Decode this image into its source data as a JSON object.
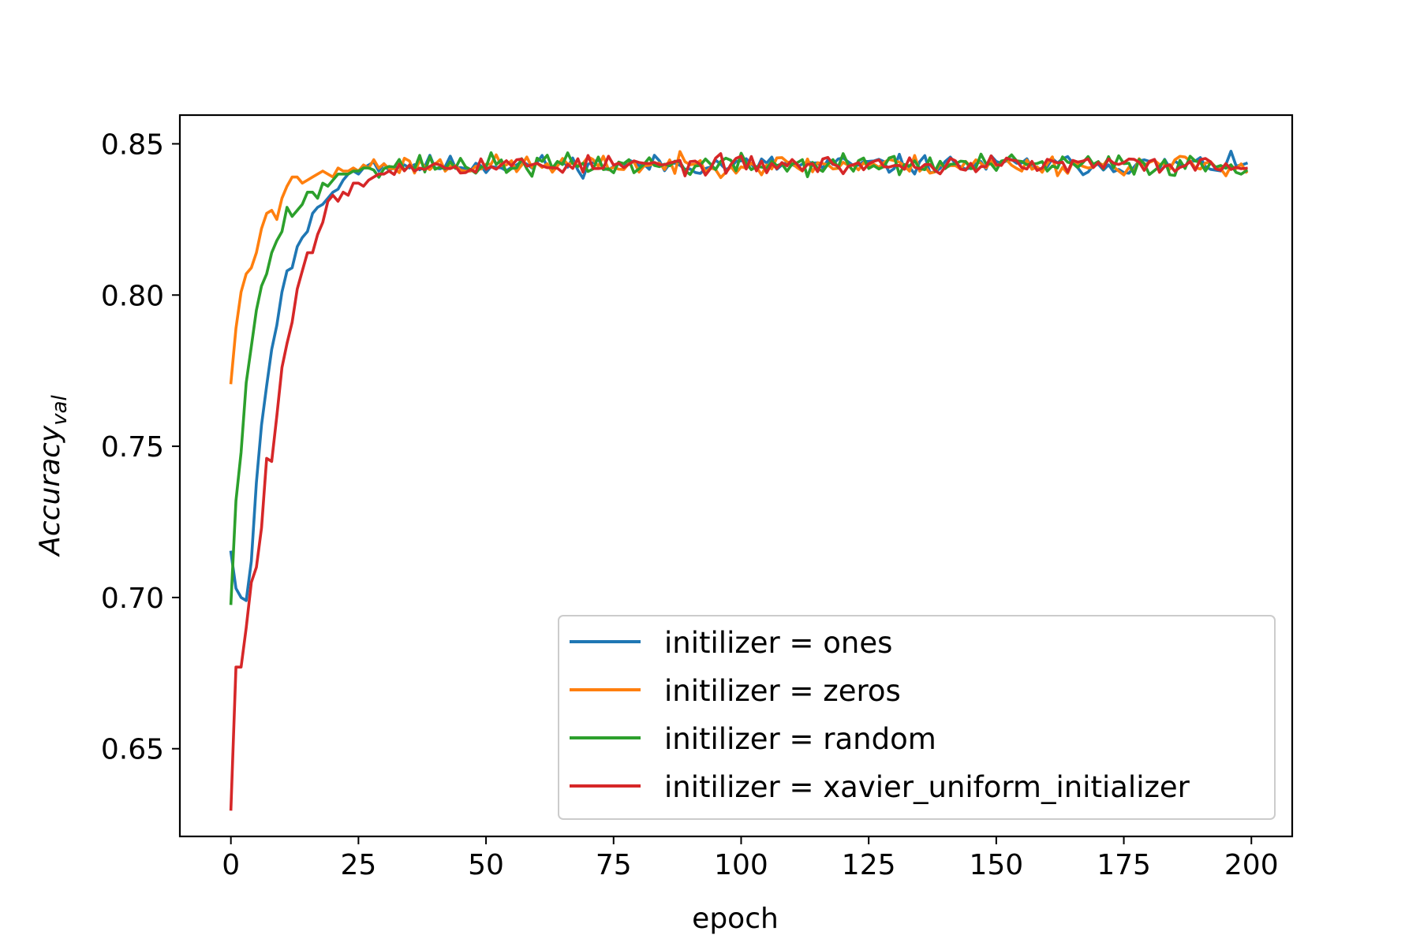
{
  "chart_data": {
    "type": "line",
    "xlabel": "epoch",
    "ylabel": "Accuracy",
    "ylabel_sub": "val",
    "xlim": [
      -10,
      208
    ],
    "ylim": [
      0.621,
      0.8595
    ],
    "xticks": [
      0,
      25,
      50,
      75,
      100,
      125,
      150,
      175,
      200
    ],
    "yticks": [
      0.65,
      0.7,
      0.75,
      0.8,
      0.85
    ],
    "ytick_labels": [
      "0.65",
      "0.70",
      "0.75",
      "0.80",
      "0.85"
    ],
    "grid": false,
    "legend_position": "lower-right",
    "plateau": 0.843,
    "series": [
      {
        "name": "initilizer = ones",
        "color": "#1f77b4",
        "early": [
          [
            0,
            0.715
          ],
          [
            1,
            0.703
          ],
          [
            2,
            0.7
          ],
          [
            3,
            0.699
          ],
          [
            4,
            0.712
          ],
          [
            5,
            0.738
          ],
          [
            6,
            0.757
          ],
          [
            7,
            0.77
          ],
          [
            8,
            0.782
          ],
          [
            9,
            0.79
          ],
          [
            10,
            0.801
          ],
          [
            11,
            0.808
          ],
          [
            12,
            0.809
          ],
          [
            13,
            0.816
          ],
          [
            14,
            0.819
          ],
          [
            15,
            0.821
          ],
          [
            16,
            0.827
          ],
          [
            17,
            0.829
          ],
          [
            18,
            0.83
          ],
          [
            19,
            0.832
          ],
          [
            20,
            0.834
          ],
          [
            21,
            0.835
          ],
          [
            22,
            0.838
          ],
          [
            23,
            0.84
          ],
          [
            24,
            0.841
          ],
          [
            25,
            0.84
          ],
          [
            26,
            0.842
          ],
          [
            27,
            0.843
          ],
          [
            28,
            0.844
          ]
        ],
        "noise": 0.0016,
        "seed": 11
      },
      {
        "name": "initilizer = zeros",
        "color": "#ff7f0e",
        "early": [
          [
            0,
            0.771
          ],
          [
            1,
            0.789
          ],
          [
            2,
            0.801
          ],
          [
            3,
            0.807
          ],
          [
            4,
            0.809
          ],
          [
            5,
            0.814
          ],
          [
            6,
            0.822
          ],
          [
            7,
            0.827
          ],
          [
            8,
            0.828
          ],
          [
            9,
            0.825
          ],
          [
            10,
            0.832
          ],
          [
            11,
            0.836
          ],
          [
            12,
            0.839
          ],
          [
            13,
            0.839
          ],
          [
            14,
            0.837
          ],
          [
            15,
            0.838
          ],
          [
            16,
            0.839
          ],
          [
            17,
            0.84
          ],
          [
            18,
            0.841
          ],
          [
            19,
            0.84
          ],
          [
            20,
            0.839
          ],
          [
            21,
            0.842
          ],
          [
            22,
            0.841
          ],
          [
            23,
            0.841
          ],
          [
            24,
            0.842
          ],
          [
            25,
            0.841
          ],
          [
            26,
            0.843
          ]
        ],
        "noise": 0.0016,
        "seed": 23
      },
      {
        "name": "initilizer = random",
        "color": "#2ca02c",
        "early": [
          [
            0,
            0.698
          ],
          [
            1,
            0.732
          ],
          [
            2,
            0.748
          ],
          [
            3,
            0.771
          ],
          [
            4,
            0.783
          ],
          [
            5,
            0.795
          ],
          [
            6,
            0.803
          ],
          [
            7,
            0.807
          ],
          [
            8,
            0.814
          ],
          [
            9,
            0.818
          ],
          [
            10,
            0.821
          ],
          [
            11,
            0.829
          ],
          [
            12,
            0.826
          ],
          [
            13,
            0.828
          ],
          [
            14,
            0.83
          ],
          [
            15,
            0.834
          ],
          [
            16,
            0.834
          ],
          [
            17,
            0.832
          ],
          [
            18,
            0.837
          ],
          [
            19,
            0.836
          ],
          [
            20,
            0.838
          ],
          [
            21,
            0.84
          ],
          [
            22,
            0.84
          ],
          [
            23,
            0.84
          ],
          [
            24,
            0.841
          ],
          [
            25,
            0.841
          ],
          [
            26,
            0.842
          ],
          [
            27,
            0.842
          ]
        ],
        "noise": 0.0018,
        "seed": 37
      },
      {
        "name": "initilizer = xavier_uniform_initializer",
        "color": "#d62728",
        "early": [
          [
            0,
            0.63
          ],
          [
            1,
            0.677
          ],
          [
            2,
            0.677
          ],
          [
            3,
            0.69
          ],
          [
            4,
            0.705
          ],
          [
            5,
            0.71
          ],
          [
            6,
            0.723
          ],
          [
            7,
            0.746
          ],
          [
            8,
            0.745
          ],
          [
            9,
            0.76
          ],
          [
            10,
            0.776
          ],
          [
            11,
            0.784
          ],
          [
            12,
            0.791
          ],
          [
            13,
            0.802
          ],
          [
            14,
            0.808
          ],
          [
            15,
            0.814
          ],
          [
            16,
            0.814
          ],
          [
            17,
            0.82
          ],
          [
            18,
            0.824
          ],
          [
            19,
            0.831
          ],
          [
            20,
            0.833
          ],
          [
            21,
            0.831
          ],
          [
            22,
            0.834
          ],
          [
            23,
            0.833
          ],
          [
            24,
            0.837
          ],
          [
            25,
            0.837
          ],
          [
            26,
            0.836
          ],
          [
            27,
            0.838
          ],
          [
            28,
            0.839
          ],
          [
            29,
            0.84
          ],
          [
            30,
            0.84
          ],
          [
            31,
            0.841
          ]
        ],
        "noise": 0.0015,
        "seed": 53
      }
    ]
  }
}
